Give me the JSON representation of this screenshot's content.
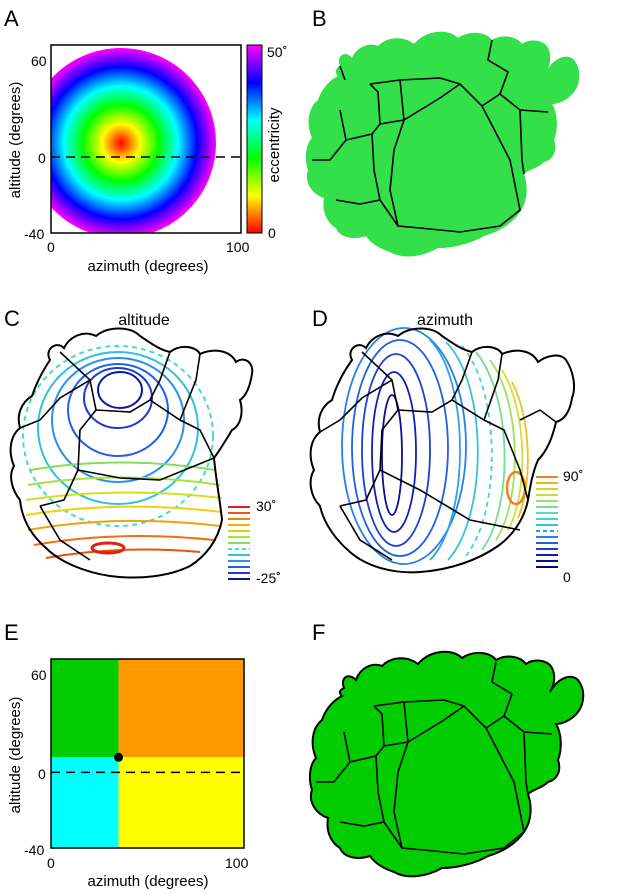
{
  "panels": {
    "A": {
      "letter": "A",
      "xlabel": "azimuth (degrees)",
      "ylabel": "altitude (degrees)",
      "xticks": [
        "0",
        "100"
      ],
      "yticks": [
        "60",
        "0",
        "-40"
      ],
      "colorbar": {
        "label": "eccentricity",
        "top": "50˚",
        "bottom": "0"
      }
    },
    "B": {
      "letter": "B"
    },
    "C": {
      "letter": "C",
      "title": "altitude",
      "legend_top": "30˚",
      "legend_bottom": "-25˚"
    },
    "D": {
      "letter": "D",
      "title": "azimuth",
      "legend_top": "90˚",
      "legend_bottom": "0"
    },
    "E": {
      "letter": "E",
      "xlabel": "azimuth (degrees)",
      "ylabel": "altitude (degrees)",
      "xticks": [
        "0",
        "100"
      ],
      "yticks": [
        "60",
        "0",
        "-40"
      ]
    },
    "F": {
      "letter": "F"
    }
  },
  "chart_data": [
    {
      "type": "heatmap",
      "panel": "A",
      "xlim": [
        0,
        100
      ],
      "ylim": [
        -40,
        60
      ],
      "center": {
        "azimuth": 35,
        "altitude": 8
      },
      "max_eccentricity": 50,
      "colormap": [
        "#ff0000",
        "#ffff00",
        "#00ff00",
        "#00ffff",
        "#0000ff",
        "#ff00ff"
      ],
      "reference_line_altitude": 0
    },
    {
      "type": "heatmap",
      "panel": "E",
      "xlim": [
        0,
        100
      ],
      "ylim": [
        -40,
        60
      ],
      "split": {
        "azimuth": 35,
        "altitude": 8
      },
      "quadrant_colors": {
        "upper_left": "#00cc00",
        "upper_right": "#ff9900",
        "lower_left": "#00ffff",
        "lower_right": "#ffff00"
      },
      "reference_line_altitude": 0
    }
  ],
  "colors": {
    "green": "#00cc00",
    "orange": "#ff9900",
    "cyan": "#00ffff",
    "yellow": "#ffff00"
  }
}
